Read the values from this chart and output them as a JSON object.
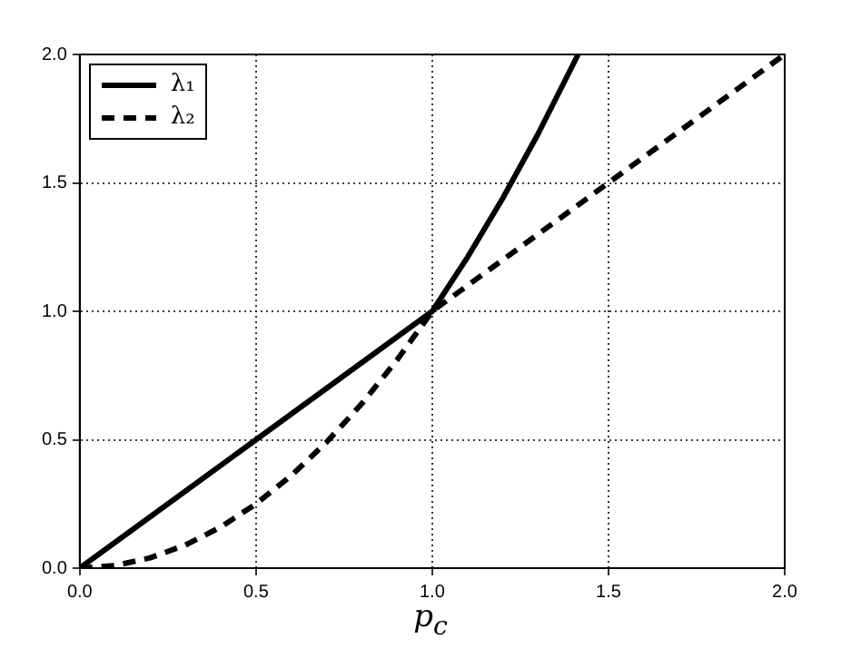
{
  "chart_data": {
    "type": "line",
    "xlabel": "p$_{c}$",
    "xlim": [
      0,
      2
    ],
    "ylim": [
      0,
      2
    ],
    "xticks": [
      {
        "value": 0,
        "label": "0.0"
      },
      {
        "value": 0.5,
        "label": "0.5"
      },
      {
        "value": 1,
        "label": "1.0"
      },
      {
        "value": 1.5,
        "label": "1.5"
      },
      {
        "value": 2,
        "label": "2.0"
      }
    ],
    "yticks": [
      {
        "value": 0,
        "label": "0.0"
      },
      {
        "value": 0.5,
        "label": "0.5"
      },
      {
        "value": 1,
        "label": "1.0"
      },
      {
        "value": 1.5,
        "label": "1.5"
      },
      {
        "value": 2,
        "label": "2.0"
      }
    ],
    "grid": true,
    "legend": "top left",
    "marker": "none",
    "series": [
      {
        "name": "λ₁",
        "color": "#000000",
        "line_style": "solid",
        "x": [
          0,
          0.5,
          1,
          1.1,
          1.2,
          1.3,
          1.414
        ],
        "values": [
          0,
          0.5,
          1,
          1.21,
          1.44,
          1.69,
          2
        ]
      },
      {
        "name": "λ₂",
        "color": "#000000",
        "line_style": "dashed",
        "x": [
          0,
          0.1,
          0.2,
          0.3,
          0.4,
          0.5,
          0.6,
          0.7,
          0.8,
          0.9,
          1,
          1.5,
          2
        ],
        "values": [
          0,
          0.01,
          0.04,
          0.09,
          0.16,
          0.25,
          0.36,
          0.49,
          0.64,
          0.81,
          1,
          1.5,
          2
        ]
      }
    ]
  }
}
